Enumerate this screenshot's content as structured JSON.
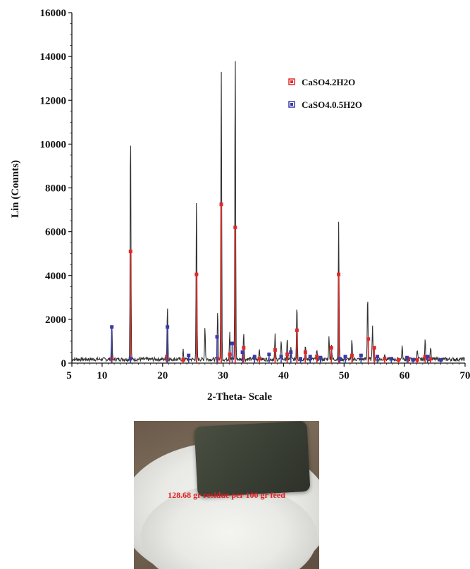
{
  "chart_data": {
    "type": "line",
    "xlabel": "2-Theta- Scale",
    "ylabel": "Lin (Counts)",
    "xlim": [
      5,
      70
    ],
    "ylim": [
      0,
      16000
    ],
    "xticks": [
      5,
      10,
      20,
      30,
      40,
      50,
      60,
      70
    ],
    "yticks": [
      0,
      2000,
      4000,
      6000,
      8000,
      10000,
      12000,
      14000,
      16000
    ],
    "legend_position": "top-right",
    "series": [
      {
        "name": "CaSO4.2H2O",
        "color": "#e02a2a",
        "marker": "square",
        "x": [
          11.6,
          14.7,
          20.7,
          23.4,
          25.6,
          29.1,
          29.7,
          31.1,
          32.0,
          33.4,
          36.0,
          38.6,
          40.6,
          42.2,
          43.6,
          45.5,
          47.9,
          49.1,
          51.3,
          54.0,
          55.0,
          56.7,
          59.0,
          60.6,
          62.1,
          63.4,
          64.3
        ],
        "values": [
          200,
          5100,
          300,
          150,
          4050,
          200,
          7250,
          400,
          6200,
          700,
          200,
          600,
          400,
          1500,
          500,
          300,
          700,
          4050,
          350,
          1100,
          700,
          200,
          150,
          200,
          150,
          300,
          200
        ]
      },
      {
        "name": "CaSO4.0.5H2O",
        "color": "#3a3aa8",
        "marker": "square",
        "x": [
          11.6,
          14.7,
          20.8,
          24.3,
          29.0,
          31.5,
          33.2,
          35.2,
          37.6,
          39.6,
          41.2,
          42.8,
          44.4,
          46.1,
          49.3,
          50.2,
          52.8,
          55.5,
          57.8,
          60.4,
          61.4,
          63.8,
          66.0
        ],
        "values": [
          1650,
          200,
          1650,
          350,
          1200,
          900,
          500,
          300,
          400,
          300,
          500,
          200,
          300,
          250,
          200,
          300,
          350,
          300,
          200,
          250,
          150,
          300,
          150
        ]
      },
      {
        "name": "",
        "color": "#333333",
        "peaks_x": [
          11.6,
          14.7,
          20.8,
          23.4,
          25.6,
          27.0,
          29.1,
          29.7,
          31.1,
          32.0,
          33.4,
          36.0,
          38.6,
          39.6,
          40.6,
          41.2,
          42.2,
          43.6,
          45.5,
          47.5,
          47.9,
          49.1,
          51.3,
          53.9,
          54.7,
          56.7,
          59.6,
          62.1,
          63.4,
          64.3
        ],
        "peaks_y": [
          1650,
          10850,
          2450,
          400,
          7450,
          1500,
          2300,
          13350,
          1300,
          14250,
          1300,
          500,
          1100,
          900,
          900,
          600,
          2600,
          600,
          400,
          1000,
          700,
          6300,
          900,
          3000,
          1600,
          300,
          600,
          400,
          900,
          600
        ]
      }
    ]
  },
  "photo": {
    "caption": "128.68 gr residue per 100 gr feed"
  }
}
